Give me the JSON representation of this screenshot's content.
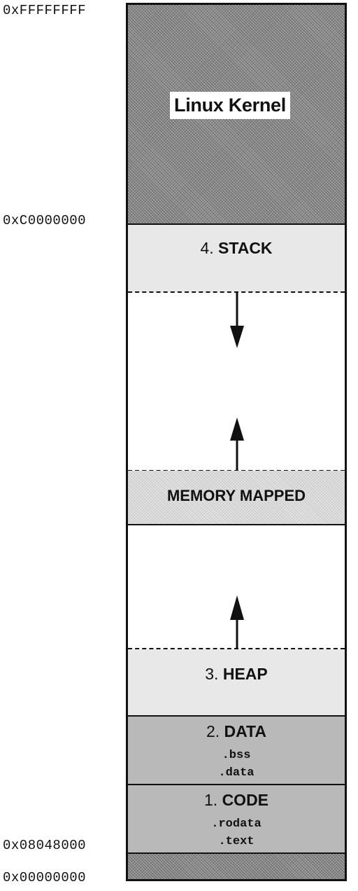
{
  "addresses": {
    "top": "0xFFFFFFFF",
    "kernel_base": "0xC0000000",
    "code_start": "0x08048000",
    "zero": "0x00000000"
  },
  "segments": {
    "kernel": {
      "label": "Linux Kernel"
    },
    "stack": {
      "number": "4.",
      "name": "STACK"
    },
    "memory_mapped": {
      "label": "MEMORY MAPPED"
    },
    "heap": {
      "number": "3.",
      "name": "HEAP"
    },
    "data": {
      "number": "2.",
      "name": "DATA",
      "sections": [
        ".bss",
        ".data"
      ]
    },
    "code": {
      "number": "1.",
      "name": "CODE",
      "sections": [
        ".rodata",
        ".text"
      ]
    }
  },
  "arrows": [
    {
      "from": "stack",
      "direction": "down"
    },
    {
      "from": "memory_mapped",
      "direction": "up"
    },
    {
      "from": "heap",
      "direction": "up"
    }
  ],
  "colors": {
    "kernel_fill": "#8f8f8f",
    "stack_heap_fill": "#e8e8e8",
    "mmap_fill": "#dcdcdc",
    "data_code_fill": "#b9b9b9",
    "border": "#111111"
  }
}
